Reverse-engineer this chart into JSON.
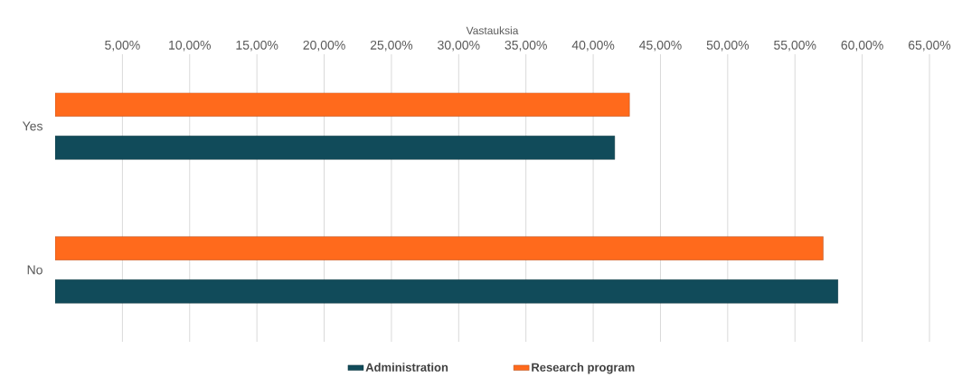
{
  "chart_data": {
    "type": "bar",
    "orientation": "horizontal",
    "xlabel": "Vastauksia",
    "categories": [
      "Yes",
      "No"
    ],
    "series": [
      {
        "name": "Administration",
        "color": "#114b5a",
        "values": [
          41.6,
          58.2
        ]
      },
      {
        "name": "Research program",
        "color": "#ff6a1c",
        "values": [
          42.7,
          57.1
        ]
      }
    ],
    "xlim": [
      0,
      65
    ],
    "xticks": [
      {
        "value": 5,
        "label": "5,00%"
      },
      {
        "value": 10,
        "label": "10,00%"
      },
      {
        "value": 15,
        "label": "15,00%"
      },
      {
        "value": 20,
        "label": "20,00%"
      },
      {
        "value": 25,
        "label": "25,00%"
      },
      {
        "value": 30,
        "label": "30,00%"
      },
      {
        "value": 35,
        "label": "35,00%"
      },
      {
        "value": 40,
        "label": "40,00%"
      },
      {
        "value": 45,
        "label": "45,00%"
      },
      {
        "value": 50,
        "label": "50,00%"
      },
      {
        "value": 55,
        "label": "55,00%"
      },
      {
        "value": 60,
        "label": "60,00%"
      },
      {
        "value": 65,
        "label": "65,00%"
      }
    ],
    "grid": "x",
    "legend": "bottom"
  }
}
